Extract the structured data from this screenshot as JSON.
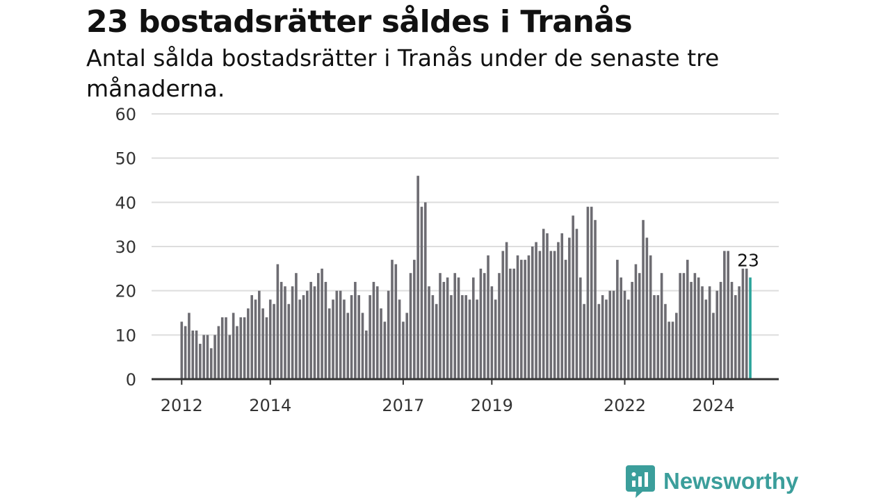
{
  "title": "23 bostadsrätter såldes i Tranås",
  "subtitle": "Antal sålda bostadsrätter i Tranås under de senaste tre månaderna.",
  "brand": {
    "name": "Newsworthy",
    "color": "#3b9e9b",
    "icon": "newsworthy-logo-icon"
  },
  "colors": {
    "bar": "#6d6c72",
    "highlight": "#2aa39a",
    "grid": "#dddddd",
    "axis": "#333333"
  },
  "chart_data": {
    "type": "bar",
    "title": "23 bostadsrätter såldes i Tranås",
    "subtitle": "Antal sålda bostadsrätter i Tranås under de senaste tre månaderna.",
    "xlabel": "",
    "ylabel": "",
    "ylim": [
      0,
      60
    ],
    "yticks": [
      0,
      10,
      20,
      30,
      40,
      50,
      60
    ],
    "grid": true,
    "x_tick_labels": [
      {
        "label": "2012",
        "index": 0
      },
      {
        "label": "2014",
        "index": 24
      },
      {
        "label": "2017",
        "index": 60
      },
      {
        "label": "2019",
        "index": 84
      },
      {
        "label": "2022",
        "index": 120
      },
      {
        "label": "2024",
        "index": 144
      }
    ],
    "highlight_index": 154,
    "highlight_label": "23",
    "values": [
      13,
      12,
      15,
      11,
      11,
      8,
      10,
      10,
      7,
      10,
      12,
      14,
      14,
      10,
      15,
      12,
      14,
      14,
      16,
      19,
      18,
      20,
      16,
      14,
      18,
      17,
      26,
      22,
      21,
      17,
      21,
      24,
      18,
      19,
      20,
      22,
      21,
      24,
      25,
      22,
      16,
      18,
      20,
      20,
      18,
      15,
      19,
      22,
      19,
      15,
      11,
      19,
      22,
      21,
      16,
      13,
      20,
      27,
      26,
      18,
      13,
      15,
      24,
      27,
      46,
      39,
      40,
      21,
      19,
      17,
      24,
      22,
      23,
      19,
      24,
      23,
      19,
      19,
      18,
      23,
      18,
      25,
      24,
      28,
      21,
      18,
      24,
      29,
      31,
      25,
      25,
      28,
      27,
      27,
      28,
      30,
      31,
      29,
      34,
      33,
      29,
      29,
      31,
      33,
      27,
      32,
      37,
      34,
      23,
      17,
      39,
      39,
      36,
      17,
      19,
      18,
      20,
      20,
      27,
      23,
      20,
      18,
      22,
      26,
      24,
      36,
      32,
      28,
      19,
      19,
      24,
      17,
      13,
      13,
      15,
      24,
      24,
      27,
      22,
      24,
      23,
      21,
      18,
      21,
      15,
      20,
      22,
      29,
      29,
      22,
      19,
      21,
      25,
      25,
      23
    ]
  }
}
